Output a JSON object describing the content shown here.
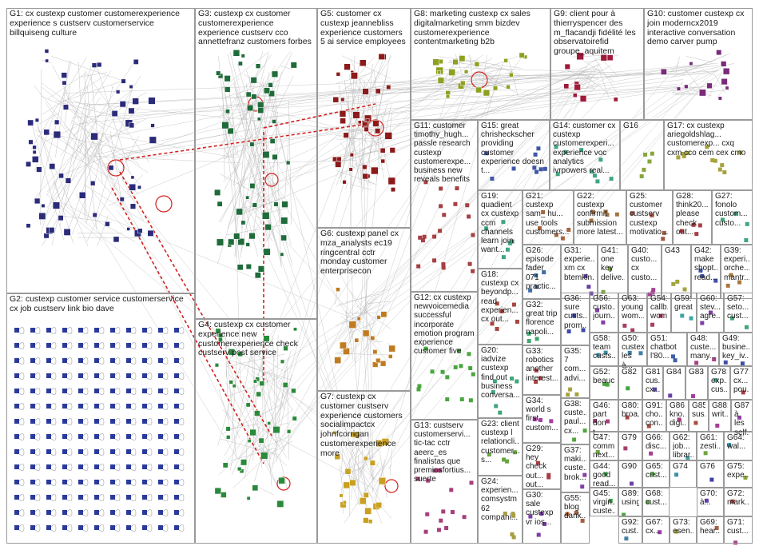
{
  "groups": [
    {
      "id": "G1",
      "label": "G1: cx custexp customer customerexperience experience s custserv customerservice billquiseng culture"
    },
    {
      "id": "G2",
      "label": "G2: custexp customer service customerservice cx job custserv link bio dave"
    },
    {
      "id": "G3",
      "label": "G3: custexp cx customer customerexperience experience custserv cco annettefranz customers forbes"
    },
    {
      "id": "G4",
      "label": "G4: custexp cx customer experience new customerexperience check custserv post service"
    },
    {
      "id": "G5",
      "label": "G5: customer cx custexp jeannebliss experience customers 5 ai service employees"
    },
    {
      "id": "G6",
      "label": "G6: custexp panel cx mza_analysts ec19 ringcentral cctr monday customer enterprisecon"
    },
    {
      "id": "G7",
      "label": "G7: custexp cx customer custserv experience customers socialimpactcx johnfcorrigan customerexperience more"
    },
    {
      "id": "G8",
      "label": "G8: marketing custexp cx sales digitalmarketing smm bizdev customerexperience contentmarketing b2b"
    },
    {
      "id": "G9",
      "label": "G9: client pour à thierryspencer des m_flacandji fidélité les observatoirefid groupe_aquitem"
    },
    {
      "id": "G10",
      "label": "G10: customer custexp cx join moderncx2019 interactive conversation demo carver pump"
    },
    {
      "id": "G11",
      "label": "G11: customer timothy_hugh... passle research custexp customerexpe... business new reveals benefits"
    },
    {
      "id": "G12",
      "label": "G12: cx custexp newvoicemedia successful incorporate emotion program experience customer five"
    },
    {
      "id": "G13",
      "label": "G13: custserv customerservi... tic-tac cctr aeerc_es finalistas que premiosfortius... suerte"
    },
    {
      "id": "G14",
      "label": "G14: customer cx custexp customerexperi... experience voc analytics ivrpowers real..."
    },
    {
      "id": "G15",
      "label": "G15: great chrisheckscher providing customer experience doesn t..."
    },
    {
      "id": "G16",
      "label": "G16"
    },
    {
      "id": "G17",
      "label": "G17: cx custexp ariegoldshlag... customerexp... cxq cxm cco cem cex cmo"
    },
    {
      "id": "G18",
      "label": "G18: custexp cx beyondp... read experien... cx out..."
    },
    {
      "id": "G19",
      "label": "G19: quadient cx custexp ccm channels learn join want..."
    },
    {
      "id": "G20",
      "label": "G20: iadvize custexp find out business conversa..."
    },
    {
      "id": "G21",
      "label": "G21: custexp sam_ hu... use tools customers..."
    },
    {
      "id": "G22",
      "label": "G22: custexp confirmit submission more latest..."
    },
    {
      "id": "G23",
      "label": "G23: client custexp l relationcli... customer... s..."
    },
    {
      "id": "G24",
      "label": "G24: experien... comsystm 62 compani..."
    },
    {
      "id": "G25",
      "label": "G25: customer custserv custexp motivatio..."
    },
    {
      "id": "G26",
      "label": "G26: episode fader 071 practic..."
    },
    {
      "id": "G27",
      "label": "G27: fonolo custom... custo..."
    },
    {
      "id": "G28",
      "label": "G28: think20... please check out..."
    },
    {
      "id": "G29",
      "label": "G29: hey check out... out..."
    },
    {
      "id": "G30",
      "label": "G30: sale custexp vr ios..."
    },
    {
      "id": "G31",
      "label": "G31: experie... xm cx btemkin..."
    },
    {
      "id": "G32",
      "label": "G32: great trip florence napoli..."
    },
    {
      "id": "G33",
      "label": "G33: robotics another interest..."
    },
    {
      "id": "G34",
      "label": "G34: world s first custom..."
    },
    {
      "id": "G35",
      "label": "G35: 7 com... advi..."
    },
    {
      "id": "G36",
      "label": "G36: sure custs... prom..."
    },
    {
      "id": "G37",
      "label": "G37: maki... custe... brok..."
    },
    {
      "id": "G38",
      "label": "G38: custe... paul... cx..."
    },
    {
      "id": "G39",
      "label": "G39: experi... orche... mantr..."
    },
    {
      "id": "G40",
      "label": "G40: custo... cx custo..."
    },
    {
      "id": "G41",
      "label": "G41: one key delive..."
    },
    {
      "id": "G42",
      "label": "G42: make shopt... read..."
    },
    {
      "id": "G43",
      "label": "G43"
    },
    {
      "id": "G44",
      "label": "G44: good read..."
    },
    {
      "id": "G45",
      "label": "G45: virgin... custe..."
    },
    {
      "id": "G46",
      "label": "G46: part don t..."
    },
    {
      "id": "G47",
      "label": "G47: comm... next..."
    },
    {
      "id": "G48",
      "label": "G48: custe... many..."
    },
    {
      "id": "G49",
      "label": "G49: busine... key_iv..."
    },
    {
      "id": "G50",
      "label": "G50: custexp les à..."
    },
    {
      "id": "G51",
      "label": "G51: chatbot l'80..."
    },
    {
      "id": "G52",
      "label": "G52: beauc..."
    },
    {
      "id": "G53",
      "label": "G53: blog dank..."
    },
    {
      "id": "G54",
      "label": "G54: callb... wom..."
    },
    {
      "id": "G55",
      "label": "G55: blog dank..."
    },
    {
      "id": "G56",
      "label": "G56: custo... journ..."
    },
    {
      "id": "G57",
      "label": "G57: seto... cust..."
    },
    {
      "id": "G58",
      "label": "G58: team custs..."
    },
    {
      "id": "G59",
      "label": "G59: great"
    },
    {
      "id": "G60",
      "label": "G60: stev... agre..."
    },
    {
      "id": "G61",
      "label": "G61: zesti..."
    },
    {
      "id": "G62",
      "label": "G62: job... librar..."
    },
    {
      "id": "G63",
      "label": "G63: young wom..."
    },
    {
      "id": "G64",
      "label": "G64: wal..."
    },
    {
      "id": "G65",
      "label": "G65: cust..."
    },
    {
      "id": "G66",
      "label": "G66: disc..."
    },
    {
      "id": "G67",
      "label": "G67: cx..."
    },
    {
      "id": "G68",
      "label": "G68: cust..."
    },
    {
      "id": "G69",
      "label": "G69: hear..."
    },
    {
      "id": "G70",
      "label": "G70: à..."
    },
    {
      "id": "G71",
      "label": "G71: cust..."
    },
    {
      "id": "G72",
      "label": "G72: mark..."
    },
    {
      "id": "G73",
      "label": "G73: esen..."
    },
    {
      "id": "G74",
      "label": "G74"
    },
    {
      "id": "G75",
      "label": "G75: expe..."
    },
    {
      "id": "G76",
      "label": "G76"
    },
    {
      "id": "G77",
      "label": "G77: cx... pou..."
    },
    {
      "id": "G78",
      "label": "G78: exp... cus..."
    },
    {
      "id": "G79",
      "label": "G79"
    },
    {
      "id": "G80",
      "label": "G80: broa..."
    },
    {
      "id": "G81",
      "label": "G81: cus... cx..."
    },
    {
      "id": "G82",
      "label": "G82"
    },
    {
      "id": "G83",
      "label": "G83"
    },
    {
      "id": "G84",
      "label": "G84"
    },
    {
      "id": "G85",
      "label": "G85: sus..."
    },
    {
      "id": "G86",
      "label": "G86: kno... digi..."
    },
    {
      "id": "G87",
      "label": "G87: à les self..."
    },
    {
      "id": "G88",
      "label": "G88: writ..."
    },
    {
      "id": "G89",
      "label": "G89: using"
    },
    {
      "id": "G90",
      "label": "G90"
    },
    {
      "id": "G91",
      "label": "G91: cho... con..."
    },
    {
      "id": "G92",
      "label": "G92: cust..."
    }
  ],
  "colors": {
    "border": "#9a9a9a",
    "edge": "#b5b5b5",
    "highlight_edge": "#d42020",
    "G1": "#2b2b7a",
    "G2": "#2b3a9a",
    "G3": "#1f6b3a",
    "G4": "#2a8a3a",
    "G5": "#8b1a1a",
    "G6": "#c07a20",
    "G7": "#c9a020",
    "G8": "#8fa020",
    "G9": "#a01a3a",
    "G10": "#7a2a7a"
  }
}
